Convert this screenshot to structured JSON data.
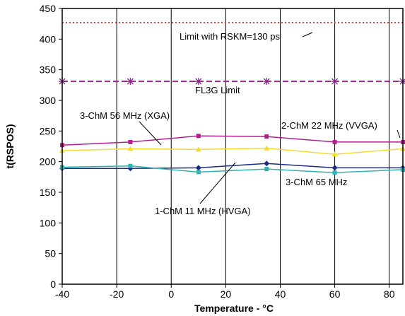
{
  "chart_data": {
    "type": "line",
    "title": "",
    "xlabel": "Temperature - °C",
    "ylabel": "t(RSPOS)",
    "xlim": [
      -40,
      85
    ],
    "ylim": [
      0,
      450
    ],
    "xticks": [
      -40,
      -20,
      0,
      20,
      40,
      60,
      80
    ],
    "yticks": [
      0,
      50,
      100,
      150,
      200,
      250,
      300,
      350,
      400,
      450
    ],
    "grid": "vertical-at-x-ticks",
    "x": [
      -40,
      -15,
      10,
      35,
      60,
      85
    ],
    "series": [
      {
        "id": "limit-rskm",
        "values": [
          427,
          427,
          427,
          427,
          427,
          427
        ],
        "color": "#d43c3c",
        "style": "dotted",
        "marker": "none"
      },
      {
        "id": "fl3g-limit",
        "values": [
          331,
          331,
          331,
          331,
          331,
          331
        ],
        "color": "#8a2b8a",
        "style": "dashed",
        "marker": "star"
      },
      {
        "id": "3chm-56mhz",
        "values": [
          227,
          232,
          242,
          241,
          232,
          232
        ],
        "color": "#b0208a",
        "style": "solid",
        "marker": "square"
      },
      {
        "id": "2chm-22mhz",
        "values": [
          218,
          221,
          220,
          222,
          212,
          221
        ],
        "color": "#f2dc30",
        "style": "solid",
        "marker": "triangle"
      },
      {
        "id": "1chm-11mhz",
        "values": [
          189,
          189,
          190,
          197,
          190,
          190
        ],
        "color": "#1c2d80",
        "style": "solid",
        "marker": "diamond"
      },
      {
        "id": "3chm-65mhz",
        "values": [
          191,
          193,
          183,
          188,
          182,
          187
        ],
        "color": "#2fb3b3",
        "style": "solid",
        "marker": "square"
      }
    ],
    "annotations": [
      {
        "id": "limit-rskm-label",
        "text": "Limit with RSKM=130 ps"
      },
      {
        "id": "fl3g-label",
        "text": "FL3G Limit"
      },
      {
        "id": "3chm-56mhz-label",
        "text": "3-ChM 56 MHz (XGA)"
      },
      {
        "id": "2chm-22mhz-label",
        "text": "2-ChM 22 MHz (VVGA)"
      },
      {
        "id": "3chm-65mhz-label",
        "text": "3-ChM 65 MHz"
      },
      {
        "id": "1chm-11mhz-label",
        "text": "1-ChM 11 MHz (HVGA)"
      }
    ]
  }
}
